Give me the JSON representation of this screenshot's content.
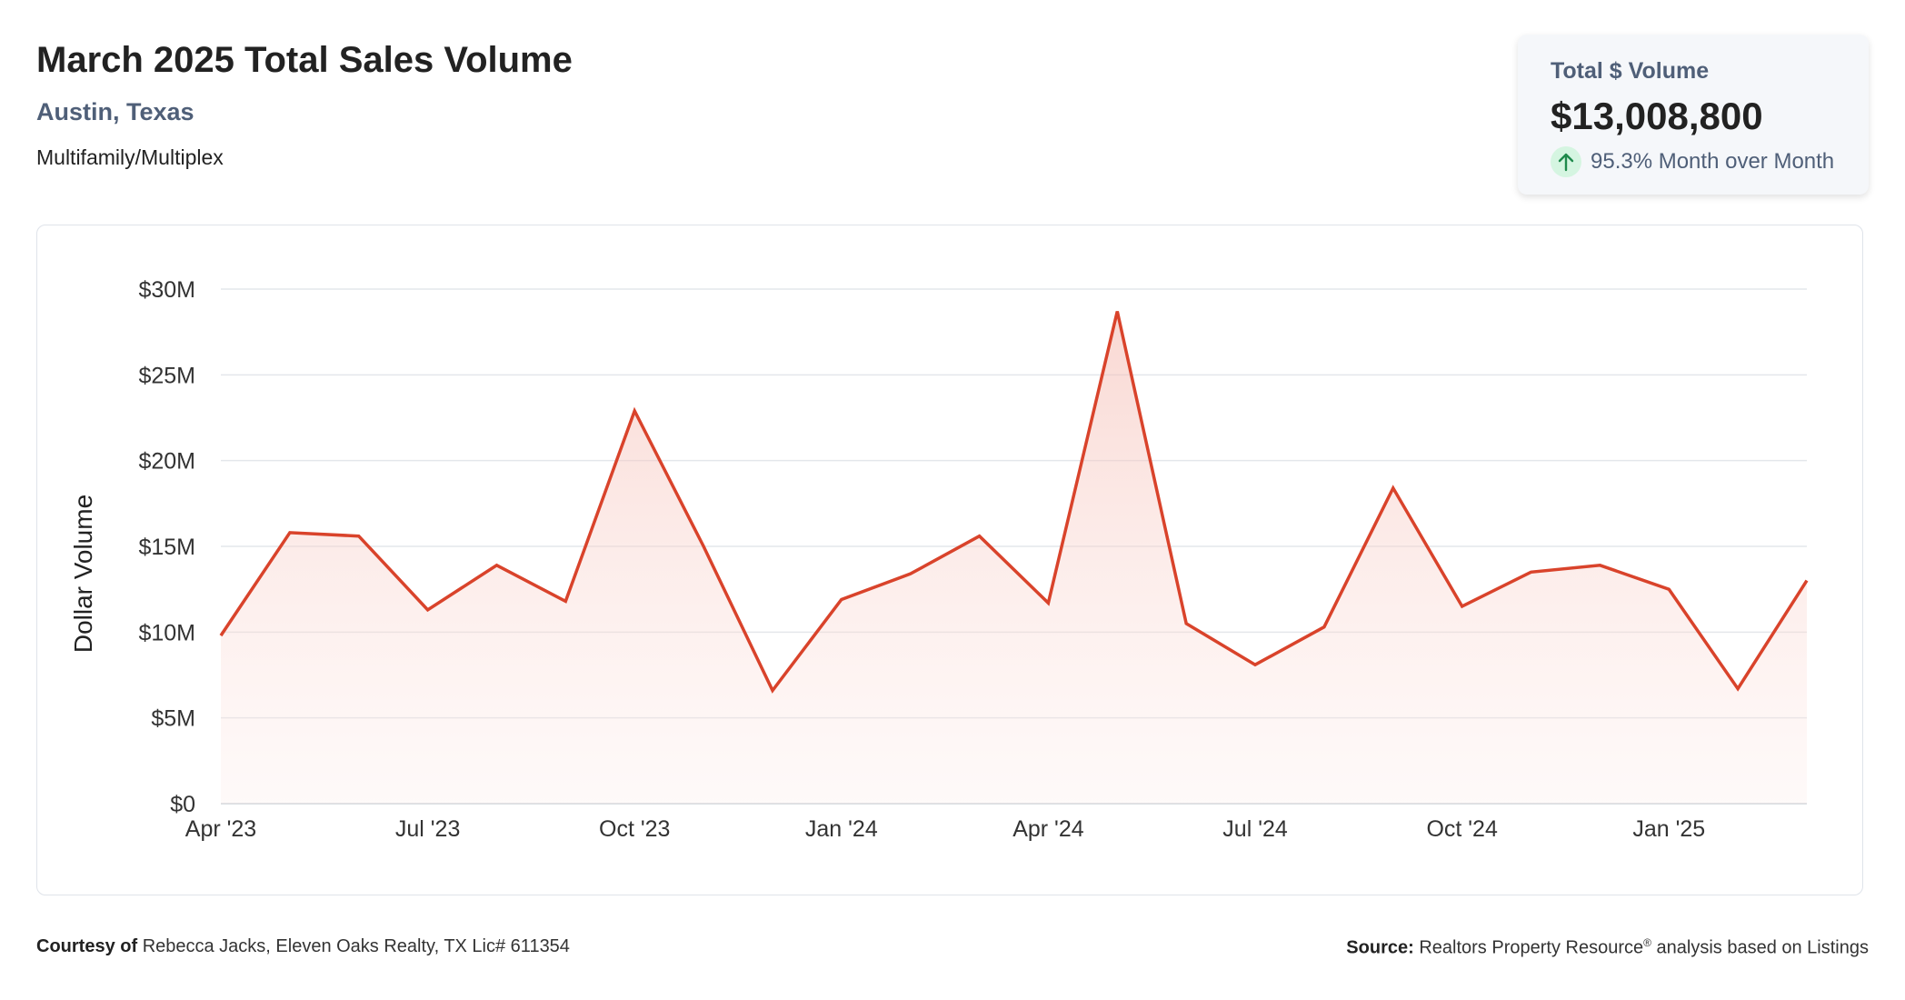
{
  "header": {
    "title": "March 2025 Total Sales Volume",
    "location": "Austin, Texas",
    "property_type": "Multifamily/Multiplex"
  },
  "stat_card": {
    "label": "Total $ Volume",
    "value": "$13,008,800",
    "change": "95.3% Month over Month",
    "change_icon": "arrow-up-icon",
    "change_color": "#1f8a4c"
  },
  "chart_data": {
    "type": "area",
    "ylabel": "Dollar Volume",
    "xlabel": "",
    "title": "",
    "ylim": [
      0,
      30000000
    ],
    "yticks": [
      0,
      5000000,
      10000000,
      15000000,
      20000000,
      25000000,
      30000000
    ],
    "ytick_labels": [
      "$0",
      "$5M",
      "$10M",
      "$15M",
      "$20M",
      "$25M",
      "$30M"
    ],
    "x": [
      "Apr '23",
      "May '23",
      "Jun '23",
      "Jul '23",
      "Aug '23",
      "Sep '23",
      "Oct '23",
      "Nov '23",
      "Dec '23",
      "Jan '24",
      "Feb '24",
      "Mar '24",
      "Apr '24",
      "May '24",
      "Jun '24",
      "Jul '24",
      "Aug '24",
      "Sep '24",
      "Oct '24",
      "Nov '24",
      "Dec '24",
      "Jan '25",
      "Feb '25",
      "Mar '25"
    ],
    "xtick_labels": [
      "Apr '23",
      "Jul '23",
      "Oct '23",
      "Jan '24",
      "Apr '24",
      "Jul '24",
      "Oct '24",
      "Jan '25"
    ],
    "series": [
      {
        "values": [
          9800000,
          15800000,
          15600000,
          11300000,
          13900000,
          11800000,
          22900000,
          15000000,
          6600000,
          11900000,
          13400000,
          15600000,
          11700000,
          28700000,
          10500000,
          8100000,
          10300000,
          18400000,
          11500000,
          13500000,
          13900000,
          12500000,
          6700000,
          13008800
        ]
      }
    ],
    "line_color": "#d9432b",
    "fill_color": "#f6c7c0",
    "grid": true
  },
  "footer": {
    "courtesy_label": "Courtesy of",
    "courtesy_text": "Rebecca Jacks, Eleven Oaks Realty, TX Lic# 611354",
    "source_label": "Source:",
    "source_text": "Realtors Property Resource",
    "source_sup": "®",
    "source_suffix": "analysis based on Listings"
  }
}
